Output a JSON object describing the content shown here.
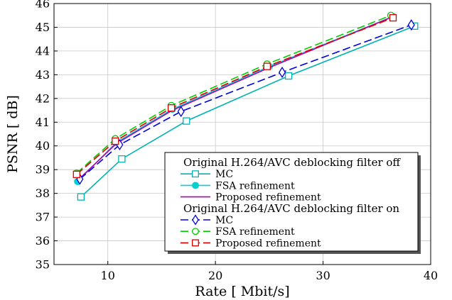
{
  "chart_data": {
    "type": "line",
    "xlabel": "Rate [ Mbit/s]",
    "ylabel": "PSNR [ dB]",
    "xlim": [
      5,
      40
    ],
    "ylim": [
      35,
      46
    ],
    "xticks": [
      10,
      20,
      30,
      40
    ],
    "yticks": [
      35,
      36,
      37,
      38,
      39,
      40,
      41,
      42,
      43,
      44,
      45,
      46
    ],
    "grid": true,
    "legend_position": "bottom-right",
    "legend_groups": [
      {
        "heading": "Original H.264/AVC deblocking filter off",
        "series": [
          "mc_off",
          "fsa_off",
          "prop_off"
        ]
      },
      {
        "heading": "Original H.264/AVC deblocking filter on",
        "series": [
          "mc_on",
          "fsa_on",
          "prop_on"
        ]
      }
    ],
    "series": [
      {
        "id": "mc_off",
        "name": "MC",
        "color": "#00b3b3",
        "dash": "solid",
        "marker": "square",
        "filled": false,
        "x": [
          7.5,
          11.3,
          17.3,
          26.8,
          38.5
        ],
        "y": [
          37.85,
          39.45,
          41.05,
          42.95,
          45.05
        ]
      },
      {
        "id": "fsa_off",
        "name": "FSA refinement",
        "color": "#00d0d0",
        "dash": "solid",
        "marker": "circle",
        "filled": true,
        "x": [
          7.2,
          10.8,
          16.0,
          25.0,
          36.5
        ],
        "y": [
          38.5,
          40.15,
          41.55,
          43.35,
          45.45
        ]
      },
      {
        "id": "prop_off",
        "name": "Proposed refinement",
        "color": "#b000b0",
        "dash": "solid",
        "marker": "none",
        "filled": false,
        "x": [
          7.2,
          10.8,
          16.0,
          25.0,
          36.5
        ],
        "y": [
          38.55,
          40.1,
          41.5,
          43.3,
          45.45
        ]
      },
      {
        "id": "mc_on",
        "name": "MC",
        "color": "#0000dd",
        "dash": "long",
        "marker": "diamond",
        "filled": false,
        "x": [
          7.4,
          11.1,
          16.8,
          26.2,
          38.2
        ],
        "y": [
          38.6,
          40.05,
          41.45,
          43.1,
          45.1
        ]
      },
      {
        "id": "fsa_on",
        "name": "FSA refinement",
        "color": "#00cc00",
        "dash": "long",
        "marker": "circle",
        "filled": false,
        "x": [
          7.1,
          10.7,
          15.9,
          24.8,
          36.3
        ],
        "y": [
          38.85,
          40.3,
          41.7,
          43.45,
          45.5
        ]
      },
      {
        "id": "prop_on",
        "name": "Proposed refinement",
        "color": "#dd0000",
        "dash": "long",
        "marker": "square",
        "filled": false,
        "x": [
          7.1,
          10.7,
          15.9,
          24.8,
          36.5
        ],
        "y": [
          38.8,
          40.2,
          41.6,
          43.35,
          45.4
        ]
      }
    ]
  }
}
